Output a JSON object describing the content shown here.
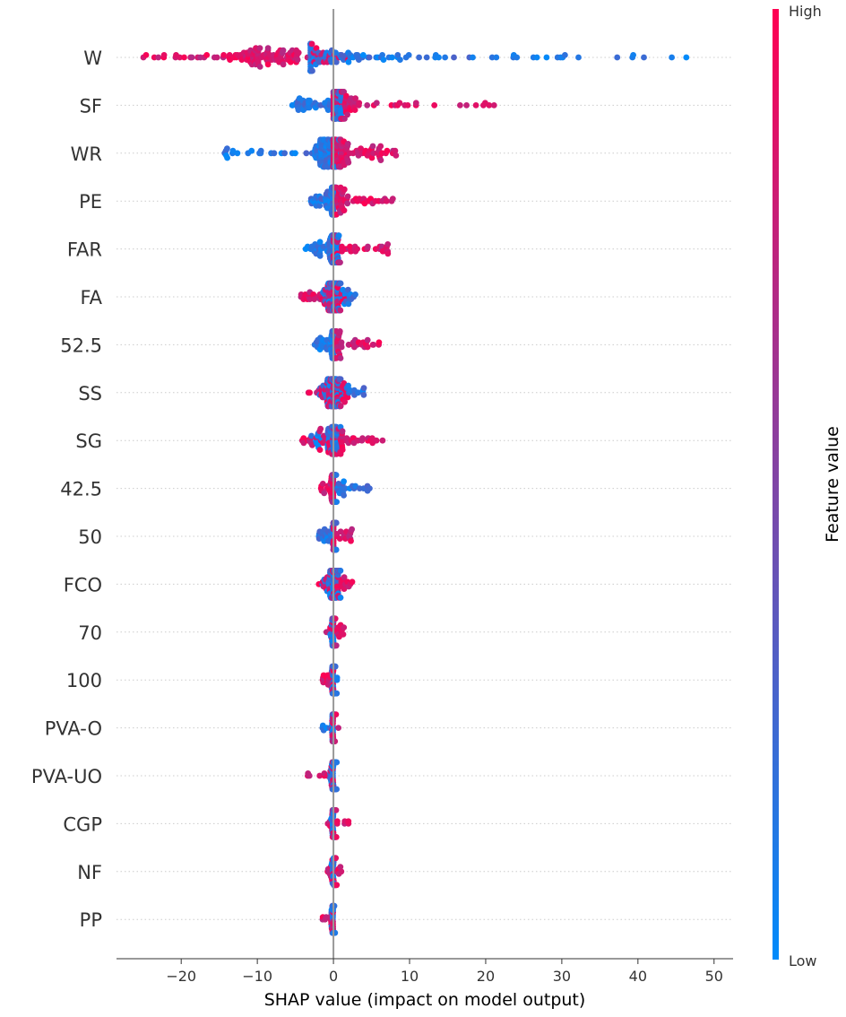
{
  "chart_data": {
    "type": "scatter",
    "subtype": "shap-beeswarm-summary",
    "title": "",
    "xlabel": "SHAP value (impact on model output)",
    "xlim": [
      -28.5,
      52.5
    ],
    "xticks": [
      -20,
      -10,
      0,
      10,
      20,
      30,
      40,
      50
    ],
    "xtick_labels": [
      "−20",
      "−10",
      "0",
      "10",
      "20",
      "30",
      "40",
      "50"
    ],
    "grid": false,
    "colorbar": {
      "title": "Feature value",
      "high_label": "High",
      "low_label": "Low",
      "high_color": "#ff0052",
      "low_color": "#008bfb"
    },
    "features": [
      {
        "name": "W",
        "range": [
          -25,
          49
        ],
        "low_side": "right",
        "low_extent": [
          -3,
          49
        ],
        "high_extent": [
          -25,
          2
        ],
        "density_center": -8,
        "count": 260
      },
      {
        "name": "SF",
        "range": [
          -5.5,
          24
        ],
        "low_side": "left",
        "low_extent": [
          -5.5,
          1
        ],
        "high_extent": [
          0,
          24
        ],
        "density_center": 1,
        "count": 180
      },
      {
        "name": "WR",
        "range": [
          -15,
          8.5
        ],
        "low_side": "left",
        "low_extent": [
          -15,
          1
        ],
        "high_extent": [
          0,
          8.5
        ],
        "density_center": -1,
        "count": 220
      },
      {
        "name": "PE",
        "range": [
          -3,
          8
        ],
        "low_side": "left",
        "low_extent": [
          -3,
          0.5
        ],
        "high_extent": [
          0,
          8
        ],
        "density_center": 0,
        "count": 160
      },
      {
        "name": "FAR",
        "range": [
          -4,
          7.5
        ],
        "low_side": "left",
        "low_extent": [
          -4,
          1
        ],
        "high_extent": [
          0,
          7.5
        ],
        "density_center": 0,
        "count": 150
      },
      {
        "name": "FA",
        "range": [
          -5,
          3
        ],
        "low_side": "right",
        "low_extent": [
          -2,
          3
        ],
        "high_extent": [
          -5,
          2
        ],
        "density_center": 0,
        "count": 150
      },
      {
        "name": "52.5",
        "range": [
          -2.5,
          6
        ],
        "low_side": "left",
        "low_extent": [
          -2.5,
          0.2
        ],
        "high_extent": [
          0,
          6
        ],
        "density_center": 0,
        "count": 120
      },
      {
        "name": "SS",
        "range": [
          -3.5,
          4
        ],
        "low_side": "right",
        "low_extent": [
          -2,
          4
        ],
        "high_extent": [
          -3.5,
          2
        ],
        "density_center": 0,
        "count": 150
      },
      {
        "name": "SG",
        "range": [
          -5,
          6.5
        ],
        "low_side": "left",
        "low_extent": [
          -3,
          1
        ],
        "high_extent": [
          -5,
          6.5
        ],
        "density_center": 0,
        "count": 120
      },
      {
        "name": "42.5",
        "range": [
          -2,
          5
        ],
        "low_side": "right",
        "low_extent": [
          0,
          5
        ],
        "high_extent": [
          -2,
          0.5
        ],
        "density_center": 0,
        "count": 110
      },
      {
        "name": "50",
        "range": [
          -2,
          2.5
        ],
        "low_side": "left",
        "low_extent": [
          -2,
          0.5
        ],
        "high_extent": [
          0,
          2.5
        ],
        "density_center": 0,
        "count": 90
      },
      {
        "name": "FCO",
        "range": [
          -2.5,
          3
        ],
        "low_side": "left",
        "low_extent": [
          -1.5,
          1
        ],
        "high_extent": [
          -2.5,
          3
        ],
        "density_center": 0,
        "count": 100
      },
      {
        "name": "70",
        "range": [
          -1,
          1.5
        ],
        "low_side": "left",
        "low_extent": [
          -0.5,
          0.3
        ],
        "high_extent": [
          -1,
          1.5
        ],
        "density_center": 0,
        "count": 60
      },
      {
        "name": "100",
        "range": [
          -1.5,
          0.5
        ],
        "low_side": "right",
        "low_extent": [
          -0.3,
          0.5
        ],
        "high_extent": [
          -1.5,
          0
        ],
        "density_center": 0,
        "count": 60
      },
      {
        "name": "PVA-O",
        "range": [
          -1.5,
          1
        ],
        "low_side": "left",
        "low_extent": [
          -1.5,
          0.2
        ],
        "high_extent": [
          -0.3,
          1
        ],
        "density_center": 0,
        "count": 60
      },
      {
        "name": "PVA-UO",
        "range": [
          -3.5,
          0.5
        ],
        "low_side": "right",
        "low_extent": [
          -0.5,
          0.5
        ],
        "high_extent": [
          -3.5,
          0
        ],
        "density_center": 0,
        "count": 60
      },
      {
        "name": "CGP",
        "range": [
          -1,
          2
        ],
        "low_side": "left",
        "low_extent": [
          -0.3,
          0.3
        ],
        "high_extent": [
          -1,
          2
        ],
        "density_center": 0,
        "count": 50
      },
      {
        "name": "NF",
        "range": [
          -1,
          1.5
        ],
        "low_side": "left",
        "low_extent": [
          -0.3,
          0.3
        ],
        "high_extent": [
          -1,
          1.5
        ],
        "density_center": 0,
        "count": 45
      },
      {
        "name": "PP",
        "range": [
          -1.5,
          0.3
        ],
        "low_side": "right",
        "low_extent": [
          -0.3,
          0.3
        ],
        "high_extent": [
          -1.5,
          0
        ],
        "density_center": 0,
        "count": 45
      }
    ]
  }
}
